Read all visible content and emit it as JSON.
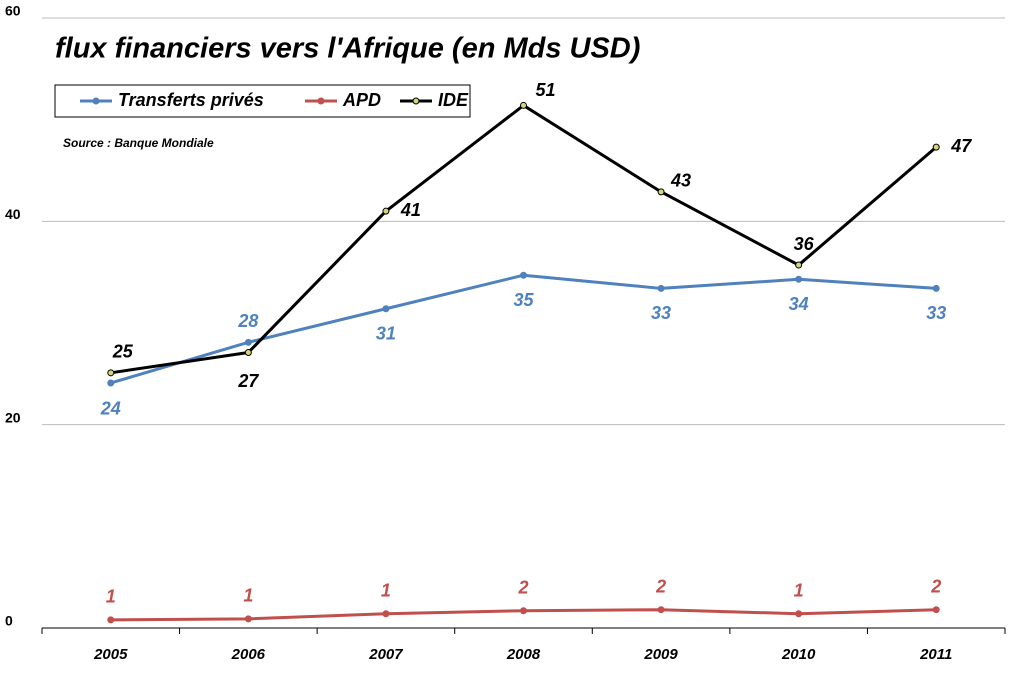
{
  "chart_data": {
    "type": "line",
    "title": "flux financiers vers l'Afrique (en Mds USD)",
    "subtitle": "Source : Banque Mondiale",
    "categories": [
      "2005",
      "2006",
      "2007",
      "2008",
      "2009",
      "2010",
      "2011"
    ],
    "series": [
      {
        "name": "Transferts privés",
        "color": "#4f81bd",
        "values": [
          24.1,
          28.1,
          31.4,
          34.7,
          33.4,
          34.3,
          33.4
        ],
        "value_labels": [
          "24",
          "28",
          "31",
          "35",
          "33",
          "34",
          "33"
        ]
      },
      {
        "name": "APD",
        "color": "#c0504d",
        "values": [
          0.8,
          0.9,
          1.4,
          1.7,
          1.8,
          1.4,
          1.8
        ],
        "value_labels": [
          "1",
          "1",
          "1",
          "2",
          "2",
          "1",
          "2"
        ]
      },
      {
        "name": "IDE",
        "color": "#000000",
        "marker_color": "#d4d47a",
        "values": [
          25.1,
          27.1,
          41.0,
          51.4,
          42.9,
          35.7,
          47.3
        ],
        "value_labels": [
          "25",
          "27",
          "41",
          "51",
          "43",
          "36",
          "47"
        ]
      }
    ],
    "ylim": [
      0,
      60
    ],
    "yticks": [
      0,
      20,
      40,
      60
    ],
    "grid": true,
    "legend": "top-left"
  }
}
